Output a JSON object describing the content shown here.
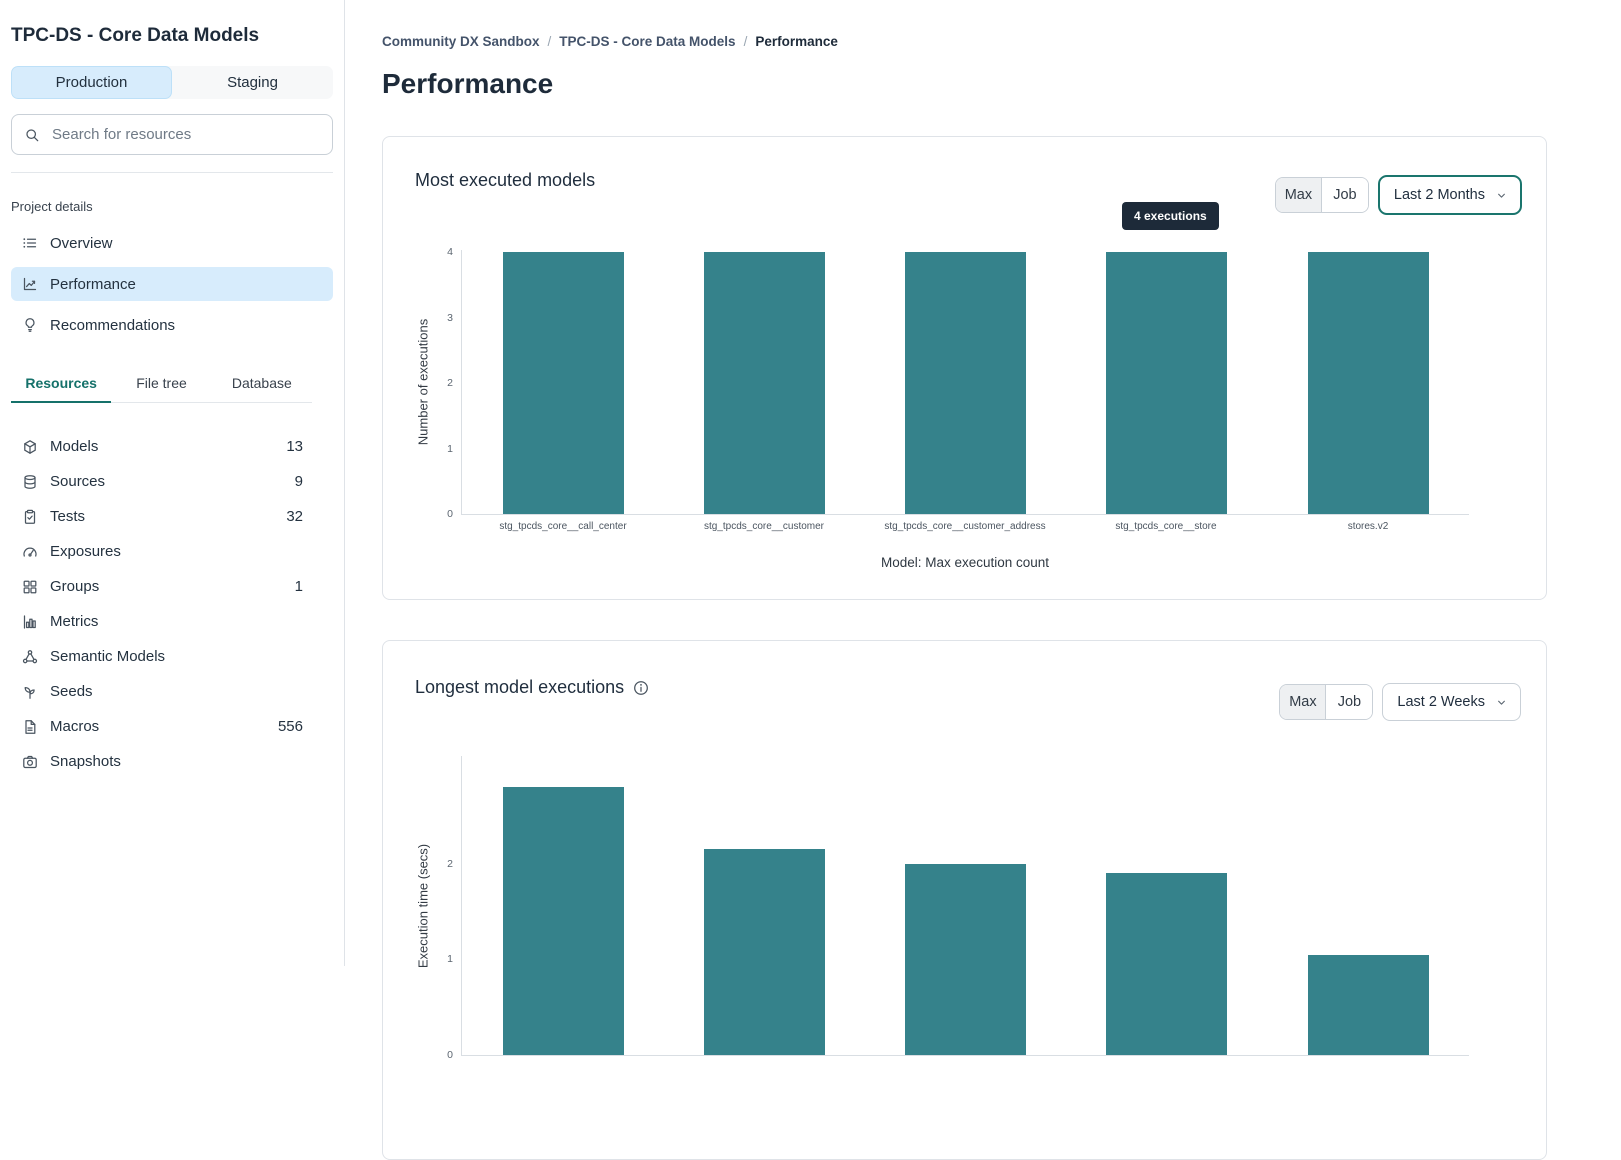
{
  "sidebar": {
    "title": "TPC-DS - Core Data Models",
    "env_tabs": [
      {
        "label": "Production",
        "active": true
      },
      {
        "label": "Staging",
        "active": false
      }
    ],
    "search": {
      "placeholder": "Search for resources"
    },
    "section_label": "Project details",
    "nav": [
      {
        "label": "Overview",
        "icon": "list-icon",
        "active": false
      },
      {
        "label": "Performance",
        "icon": "line-chart-icon",
        "active": true
      },
      {
        "label": "Recommendations",
        "icon": "lightbulb-icon",
        "active": false
      }
    ],
    "tabs": [
      {
        "label": "Resources",
        "active": true
      },
      {
        "label": "File tree",
        "active": false
      },
      {
        "label": "Database",
        "active": false
      }
    ],
    "resources": [
      {
        "label": "Models",
        "count": "13",
        "icon": "cube-icon"
      },
      {
        "label": "Sources",
        "count": "9",
        "icon": "database-icon"
      },
      {
        "label": "Tests",
        "count": "32",
        "icon": "clipboard-check-icon"
      },
      {
        "label": "Exposures",
        "count": "",
        "icon": "gauge-icon"
      },
      {
        "label": "Groups",
        "count": "1",
        "icon": "grid-icon"
      },
      {
        "label": "Metrics",
        "count": "",
        "icon": "bar-chart-icon"
      },
      {
        "label": "Semantic Models",
        "count": "",
        "icon": "network-icon"
      },
      {
        "label": "Seeds",
        "count": "",
        "icon": "seedling-icon"
      },
      {
        "label": "Macros",
        "count": "556",
        "icon": "document-icon"
      },
      {
        "label": "Snapshots",
        "count": "",
        "icon": "camera-icon"
      }
    ]
  },
  "breadcrumb": {
    "separator": "/",
    "items": [
      {
        "label": "Community DX Sandbox",
        "current": false
      },
      {
        "label": "TPC-DS - Core Data Models",
        "current": false
      },
      {
        "label": "Performance",
        "current": true
      }
    ]
  },
  "page_title": "Performance",
  "cards": [
    {
      "title": "Most executed models",
      "toggle": {
        "options": [
          "Max",
          "Job"
        ],
        "selected": "Max"
      },
      "range_select": {
        "value": "Last 2 Months",
        "focused": true
      }
    },
    {
      "title": "Longest model executions",
      "toggle": {
        "options": [
          "Max",
          "Job"
        ],
        "selected": "Max"
      },
      "range_select": {
        "value": "Last 2 Weeks",
        "focused": false
      }
    }
  ],
  "chart_data": [
    {
      "type": "bar",
      "title": "Most executed models",
      "categories": [
        "stg_tpcds_core__call_center",
        "stg_tpcds_core__customer",
        "stg_tpcds_core__customer_address",
        "stg_tpcds_core__store",
        "stores.v2"
      ],
      "values": [
        4,
        4,
        4,
        4,
        4
      ],
      "xlabel": "Model: Max execution count",
      "ylabel": "Number of executions",
      "ylim": [
        0,
        4
      ],
      "yticks": [
        0,
        1,
        2,
        3,
        4
      ],
      "grid": false,
      "bar_color": "#35828B",
      "tooltip": {
        "text": "4 executions",
        "bar_index": 3
      }
    },
    {
      "type": "bar",
      "title": "Longest model executions",
      "values": [
        2.8,
        2.15,
        2.0,
        1.9,
        1.05
      ],
      "ylabel": "Execution time (secs)",
      "ylim": [
        0,
        3.1
      ],
      "yticks": [
        0,
        1,
        2
      ],
      "grid": false,
      "bar_color": "#35828B"
    }
  ]
}
